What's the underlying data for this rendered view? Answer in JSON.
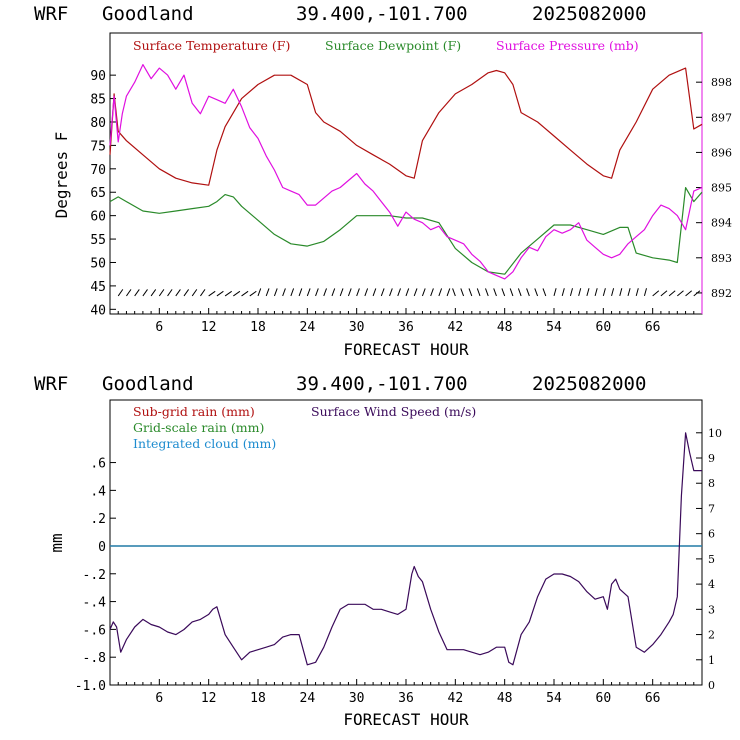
{
  "chart_data": [
    {
      "type": "line",
      "title": {
        "model": "WRF",
        "location": "Goodland",
        "coords": "39.400,-101.700",
        "run": "2025082000"
      },
      "xlabel": "FORECAST HOUR",
      "ylabel": "Degrees F",
      "xlim": [
        0,
        72
      ],
      "ylim": [
        39,
        99
      ],
      "y2lim": [
        891.4,
        899.4
      ],
      "xticks": [
        6,
        12,
        18,
        24,
        30,
        36,
        42,
        48,
        54,
        60,
        66
      ],
      "xtick_labels": [
        "6",
        "12",
        "18",
        "24",
        "30",
        "36",
        "42",
        "48",
        "54",
        "60",
        "66"
      ],
      "yticks": [
        40,
        45,
        50,
        55,
        60,
        65,
        70,
        75,
        80,
        85,
        90
      ],
      "ytick_labels": [
        "40",
        "45",
        "50",
        "55",
        "60",
        "65",
        "70",
        "75",
        "80",
        "85",
        "90"
      ],
      "y2ticks": [
        892,
        893,
        894,
        895,
        896,
        897,
        898
      ],
      "y2tick_labels": [
        "892",
        "893",
        "894",
        "895",
        "896",
        "897",
        "898"
      ],
      "legend_placement": "top",
      "grid": false,
      "series": [
        {
          "name": "Surface Temperature (F)",
          "color": "#b01010",
          "axis": "left",
          "x": [
            0,
            0.5,
            1,
            2,
            4,
            6,
            8,
            10,
            12,
            13,
            14,
            16,
            18,
            20,
            22,
            24,
            25,
            26,
            28,
            30,
            32,
            34,
            36,
            37,
            38,
            40,
            42,
            44,
            46,
            47,
            48,
            49,
            50,
            52,
            54,
            56,
            58,
            60,
            61,
            62,
            64,
            66,
            68,
            70,
            71,
            72
          ],
          "y": [
            73,
            86,
            78,
            76,
            73,
            70,
            68,
            67,
            66.5,
            74,
            79,
            85,
            88,
            90,
            90,
            88,
            82,
            80,
            78,
            75,
            73,
            71,
            68.5,
            68,
            76,
            82,
            86,
            88,
            90.5,
            91,
            90.5,
            88,
            82,
            80,
            77,
            74,
            71,
            68.5,
            68,
            74,
            80,
            87,
            90,
            91.5,
            78.5,
            79.5
          ]
        },
        {
          "name": "Surface Dewpoint (F)",
          "color": "#2a8a2a",
          "axis": "left",
          "x": [
            0,
            1,
            2,
            4,
            6,
            8,
            10,
            12,
            13,
            14,
            15,
            16,
            18,
            20,
            22,
            24,
            26,
            28,
            30,
            32,
            34,
            36,
            38,
            40,
            42,
            44,
            46,
            48,
            50,
            52,
            54,
            56,
            58,
            60,
            62,
            63,
            64,
            66,
            68,
            69,
            70,
            71,
            72
          ],
          "y": [
            63,
            64,
            63,
            61,
            60.5,
            61,
            61.5,
            62,
            63,
            64.5,
            64,
            62,
            59,
            56,
            54,
            53.5,
            54.5,
            57,
            60,
            60,
            60,
            59.5,
            59.5,
            58.5,
            53,
            50,
            48,
            47.5,
            52,
            55,
            58,
            58,
            57,
            56,
            57.5,
            57.5,
            52,
            51,
            50.5,
            50,
            66,
            63,
            65
          ]
        },
        {
          "name": "Surface Pressure (mb)",
          "color": "#e010e0",
          "axis": "right",
          "x": [
            0,
            0.5,
            1,
            1.5,
            2,
            3,
            4,
            5,
            6,
            7,
            8,
            9,
            10,
            11,
            12,
            13,
            14,
            15,
            16,
            17,
            18,
            19,
            20,
            21,
            22,
            23,
            24,
            25,
            26,
            27,
            28,
            29,
            30,
            31,
            32,
            33,
            34,
            35,
            36,
            37,
            38,
            39,
            40,
            41,
            42,
            43,
            44,
            45,
            46,
            47,
            48,
            49,
            50,
            51,
            52,
            53,
            54,
            55,
            56,
            57,
            58,
            59,
            60,
            61,
            62,
            63,
            64,
            65,
            66,
            67,
            68,
            69,
            70,
            71,
            72
          ],
          "y": [
            896.2,
            897.6,
            896.3,
            897.1,
            897.6,
            898.0,
            898.5,
            898.1,
            898.4,
            898.2,
            897.8,
            898.2,
            897.4,
            897.1,
            897.6,
            897.5,
            897.4,
            897.8,
            897.3,
            896.7,
            896.4,
            895.9,
            895.5,
            895.0,
            894.9,
            894.8,
            894.5,
            894.5,
            894.7,
            894.9,
            895.0,
            895.2,
            895.4,
            895.1,
            894.9,
            894.6,
            894.3,
            893.9,
            894.3,
            894.1,
            894.0,
            893.8,
            893.9,
            893.6,
            893.5,
            893.4,
            893.1,
            892.9,
            892.6,
            892.5,
            892.4,
            892.6,
            893.0,
            893.3,
            893.2,
            893.6,
            893.8,
            893.7,
            893.8,
            894.0,
            893.5,
            893.3,
            893.1,
            893.0,
            893.1,
            893.4,
            893.6,
            893.8,
            894.2,
            894.5,
            894.4,
            894.2,
            893.8,
            894.9,
            895.0
          ]
        }
      ]
    },
    {
      "type": "line",
      "title": {
        "model": "WRF",
        "location": "Goodland",
        "coords": "39.400,-101.700",
        "run": "2025082000"
      },
      "xlabel": "FORECAST HOUR",
      "ylabel": "mm",
      "xlim": [
        0,
        72
      ],
      "ylim": [
        -1.0,
        1.05
      ],
      "y2lim": [
        0,
        11.3
      ],
      "xticks": [
        6,
        12,
        18,
        24,
        30,
        36,
        42,
        48,
        54,
        60,
        66
      ],
      "xtick_labels": [
        "6",
        "12",
        "18",
        "24",
        "30",
        "36",
        "42",
        "48",
        "54",
        "60",
        "66"
      ],
      "yticks": [
        -1.0,
        -0.8,
        -0.6,
        -0.4,
        -0.2,
        0,
        0.2,
        0.4,
        0.6
      ],
      "ytick_labels": [
        "-1.0",
        "-.8",
        "-.6",
        "-.4",
        "-.2",
        "0",
        ".2",
        ".4",
        ".6"
      ],
      "y2ticks": [
        0,
        1,
        2,
        3,
        4,
        5,
        6,
        7,
        8,
        9,
        10
      ],
      "y2tick_labels": [
        "0",
        "1",
        "2",
        "3",
        "4",
        "5",
        "6",
        "7",
        "8",
        "9",
        "10"
      ],
      "legend_placement": "top-left",
      "grid": false,
      "series": [
        {
          "name": "Sub-grid rain (mm)",
          "color": "#b01010",
          "axis": "left",
          "x": [
            0,
            72
          ],
          "y": [
            0,
            0
          ]
        },
        {
          "name": "Grid-scale rain (mm)",
          "color": "#2a8a2a",
          "axis": "left",
          "x": [
            0,
            72
          ],
          "y": [
            0,
            0
          ]
        },
        {
          "name": "Integrated cloud (mm)",
          "color": "#1e8ccf",
          "axis": "left",
          "x": [
            0,
            72
          ],
          "y": [
            0,
            0
          ]
        },
        {
          "name": "Surface Wind Speed (m/s)",
          "color": "#3a0a5a",
          "axis": "right",
          "x": [
            0,
            0.4,
            0.8,
            1.3,
            2,
            3,
            4,
            5,
            6,
            7,
            8,
            9,
            10,
            11,
            12,
            12.5,
            13,
            14,
            15,
            16,
            17,
            18,
            19,
            20,
            21,
            22,
            23,
            24,
            25,
            26,
            27,
            28,
            29,
            30,
            31,
            32,
            33,
            34,
            35,
            36,
            36.7,
            37,
            37.5,
            38,
            39,
            40,
            41,
            42,
            43,
            44,
            45,
            46,
            47,
            48,
            48.5,
            49,
            50,
            51,
            52,
            53,
            54,
            55,
            56,
            57,
            58,
            59,
            60,
            60.5,
            61,
            61.5,
            62,
            63,
            64,
            65,
            66,
            67,
            68,
            68.5,
            69,
            69.5,
            70,
            70.5,
            71,
            72
          ],
          "y": [
            2.2,
            2.5,
            2.3,
            1.3,
            1.8,
            2.3,
            2.6,
            2.4,
            2.3,
            2.1,
            2.0,
            2.2,
            2.5,
            2.6,
            2.8,
            3.0,
            3.1,
            2.0,
            1.5,
            1.0,
            1.3,
            1.4,
            1.5,
            1.6,
            1.9,
            2.0,
            2.0,
            0.8,
            0.9,
            1.5,
            2.3,
            3.0,
            3.2,
            3.2,
            3.2,
            3.0,
            3.0,
            2.9,
            2.8,
            3.0,
            4.4,
            4.7,
            4.3,
            4.1,
            3.0,
            2.1,
            1.4,
            1.4,
            1.4,
            1.3,
            1.2,
            1.3,
            1.5,
            1.5,
            0.9,
            0.8,
            2.0,
            2.5,
            3.5,
            4.2,
            4.4,
            4.4,
            4.3,
            4.1,
            3.7,
            3.4,
            3.5,
            3.0,
            4.0,
            4.2,
            3.8,
            3.5,
            1.5,
            1.3,
            1.6,
            2.0,
            2.5,
            2.8,
            3.5,
            7.5,
            10.0,
            9.2,
            8.5,
            8.5
          ]
        }
      ]
    }
  ]
}
